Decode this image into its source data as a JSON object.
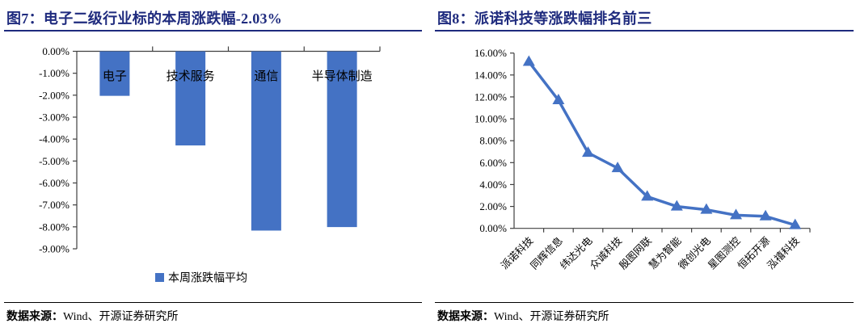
{
  "figures": [
    {
      "title": "图7：电子二级行业标的本周涨跌幅-2.03%",
      "source_prefix": "数据来源：",
      "source_body": "Wind、开源证券研究所"
    },
    {
      "title": "图8：派诺科技等涨跌幅排名前三",
      "source_prefix": "数据来源：",
      "source_body": "Wind、开源证券研究所"
    }
  ],
  "chart_data": [
    {
      "type": "bar",
      "title": "电子二级行业标的本周涨跌幅-2.03%",
      "categories": [
        "电子",
        "技术服务",
        "通信",
        "半导体制造"
      ],
      "values": [
        -2.03,
        -4.29,
        -8.17,
        -8.01
      ],
      "series_name": "本周涨跌幅平均",
      "ylabel": "",
      "xlabel": "",
      "ylim": [
        -9,
        0
      ],
      "ytick_values": [
        0,
        -1,
        -2,
        -3,
        -4,
        -5,
        -6,
        -7,
        -8,
        -9
      ],
      "ytick_labels": [
        "0.00%",
        "-1.00%",
        "-2.00%",
        "-3.00%",
        "-4.00%",
        "-5.00%",
        "-6.00%",
        "-7.00%",
        "-8.00%",
        "-9.00%"
      ],
      "bar_color": "#4472C4",
      "grid": false,
      "legend_position": "bottom"
    },
    {
      "type": "line",
      "title": "派诺科技等涨跌幅排名前三",
      "categories": [
        "派诺科技",
        "同辉信息",
        "纬达光电",
        "众诚科技",
        "殷图网联",
        "慧为智能",
        "微创光电",
        "星图测控",
        "恒拓开源",
        "泓禧科技"
      ],
      "values": [
        15.2,
        11.7,
        6.9,
        5.5,
        2.9,
        2.0,
        1.7,
        1.2,
        1.1,
        0.3
      ],
      "ylabel": "",
      "xlabel": "",
      "ylim": [
        0,
        16
      ],
      "ytick_values": [
        16,
        14,
        12,
        10,
        8,
        6,
        4,
        2,
        0
      ],
      "ytick_labels": [
        "16.00%",
        "14.00%",
        "12.00%",
        "10.00%",
        "8.00%",
        "6.00%",
        "4.00%",
        "2.00%",
        "0.00%"
      ],
      "line_color": "#4472C4",
      "marker": "triangle-up",
      "grid": false,
      "legend_position": "none"
    }
  ],
  "colors": {
    "title_navy": "#1F2B7E",
    "series_blue": "#4472C4",
    "axis": "#404040",
    "text": "#000000"
  }
}
